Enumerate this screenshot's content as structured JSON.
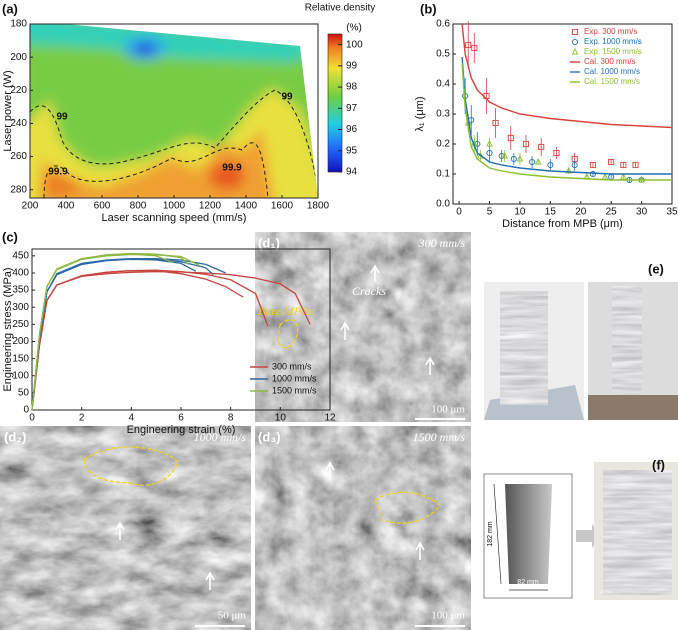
{
  "chart_data": [
    {
      "type": "contour",
      "panel": "(a)",
      "xlabel": "Laser scanning speed (mm/s)",
      "ylabel": "Laser power (W)",
      "xlim": [
        200,
        1800
      ],
      "xticks": [
        200,
        400,
        600,
        800,
        1000,
        1200,
        1400,
        1600,
        1800
      ],
      "ylim": [
        180,
        285
      ],
      "yticks": [
        180,
        200,
        220,
        240,
        260,
        280
      ],
      "yaxis_inverted": true,
      "colorbar": {
        "label": "Relative density",
        "unit": "(%)",
        "lim": [
          94,
          100.5
        ],
        "ticks": [
          94,
          95,
          96,
          97,
          98,
          99,
          100
        ]
      },
      "contour_labels": [
        "99",
        "99",
        "99.9",
        "99.9"
      ]
    },
    {
      "type": "scatter_line",
      "panel": "(b)",
      "xlabel": "Distance from MPB (μm)",
      "ylabel": "λ₁ (μm)",
      "xlim": [
        -1,
        35
      ],
      "xticks": [
        0,
        5,
        10,
        15,
        20,
        25,
        30,
        35
      ],
      "ylim": [
        0,
        0.6
      ],
      "yticks": [
        {
          "value": 0,
          "label": "0.0"
        },
        0.1,
        0.2,
        0.3,
        0.4,
        0.5,
        0.6
      ],
      "legend": "upper right",
      "series": [
        {
          "name": "Exp. 300 mm/s",
          "color": "#d9403a",
          "marker": "square",
          "x": [
            1.5,
            2.5,
            4.5,
            6,
            8.5,
            11,
            13.5,
            16,
            19,
            22,
            25,
            27,
            29
          ],
          "values": [
            0.53,
            0.52,
            0.36,
            0.27,
            0.22,
            0.2,
            0.19,
            0.17,
            0.15,
            0.13,
            0.14,
            0.13,
            0.13
          ],
          "errors": [
            0.08,
            0.05,
            0.06,
            0.05,
            0.04,
            0.03,
            0.03,
            0.02,
            0.02,
            0.01,
            0.01,
            0.01,
            0.01
          ]
        },
        {
          "name": "Exp. 1000 mm/s",
          "color": "#1f6fb4",
          "marker": "circle",
          "x": [
            1,
            2,
            3,
            5,
            7,
            9,
            12,
            15,
            19,
            22,
            25,
            28,
            30
          ],
          "values": [
            0.36,
            0.28,
            0.2,
            0.17,
            0.16,
            0.15,
            0.14,
            0.13,
            0.13,
            0.1,
            0.09,
            0.08,
            0.08
          ],
          "errors": [
            0.06,
            0.05,
            0.04,
            0.03,
            0.02,
            0.02,
            0.02,
            0.02,
            0.02,
            0.01,
            0.01,
            0.01,
            0.01
          ]
        },
        {
          "name": "Exp. 1500 mm/s",
          "color": "#8cbf2f",
          "marker": "triangle",
          "x": [
            1.5,
            2.5,
            3.5,
            5,
            7.5,
            10,
            13,
            18,
            21,
            24,
            27,
            30
          ],
          "values": [
            0.27,
            0.2,
            0.16,
            0.2,
            0.16,
            0.15,
            0.14,
            0.11,
            0.09,
            0.09,
            0.09,
            0.08
          ],
          "errors": [
            0.03,
            0.03,
            0.02,
            0.02,
            0.02,
            0.02,
            0.01,
            0.01,
            0.01,
            0.01,
            0.01,
            0.01
          ]
        },
        {
          "name": "Cal. 300 mm/s",
          "color": "#d9403a",
          "marker": "line",
          "x": [
            0.5,
            1,
            2,
            3,
            5,
            7,
            10,
            15,
            20,
            25,
            30,
            35
          ],
          "values": [
            0.6,
            0.5,
            0.42,
            0.38,
            0.34,
            0.32,
            0.3,
            0.285,
            0.275,
            0.265,
            0.26,
            0.255
          ]
        },
        {
          "name": "Cal. 1000 mm/s",
          "color": "#1f6fb4",
          "marker": "line",
          "x": [
            0.5,
            1,
            2,
            3,
            5,
            7,
            10,
            15,
            20,
            25,
            30,
            35
          ],
          "values": [
            0.49,
            0.35,
            0.22,
            0.17,
            0.14,
            0.13,
            0.12,
            0.11,
            0.105,
            0.1,
            0.1,
            0.1
          ]
        },
        {
          "name": "Cal. 1500 mm/s",
          "color": "#8cbf2f",
          "marker": "line",
          "x": [
            0.5,
            1,
            2,
            3,
            5,
            7,
            10,
            15,
            20,
            25,
            30,
            35
          ],
          "values": [
            0.47,
            0.32,
            0.19,
            0.15,
            0.12,
            0.11,
            0.1,
            0.09,
            0.085,
            0.08,
            0.08,
            0.08
          ]
        }
      ]
    },
    {
      "type": "curves",
      "panel": "(c)",
      "xlabel": "Engineering strain (%)",
      "ylabel": "Engineering stress (MPa)",
      "xlim": [
        0,
        12
      ],
      "xticks": [
        0,
        2,
        4,
        6,
        8,
        10,
        12
      ],
      "ylim": [
        0,
        470
      ],
      "yticks": [
        0,
        50,
        100,
        150,
        200,
        250,
        300,
        350,
        400,
        450
      ],
      "legend": "lower right",
      "series": [
        {
          "name": "300 mm/s",
          "color": "#c8453f",
          "curves": [
            {
              "x": [
                0,
                0.3,
                0.6,
                1,
                2,
                3,
                4,
                5,
                6,
                7,
                7.8,
                8.5
              ],
              "y": [
                0,
                190,
                320,
                365,
                392,
                402,
                407,
                406,
                398,
                382,
                360,
                330
              ]
            },
            {
              "x": [
                0,
                0.3,
                0.6,
                1,
                2,
                3,
                4,
                5,
                6,
                7,
                8,
                9,
                9.5
              ],
              "y": [
                0,
                190,
                320,
                365,
                392,
                402,
                407,
                408,
                404,
                396,
                380,
                340,
                245
              ]
            },
            {
              "x": [
                0,
                0.3,
                0.6,
                1,
                2,
                3,
                4,
                5,
                6,
                7,
                8,
                9,
                10,
                10.6,
                11.2
              ],
              "y": [
                0,
                190,
                320,
                365,
                390,
                398,
                402,
                404,
                403,
                400,
                395,
                385,
                368,
                340,
                250
              ]
            }
          ]
        },
        {
          "name": "1000 mm/s",
          "color": "#2d6aa3",
          "curves": [
            {
              "x": [
                0,
                0.3,
                0.6,
                1,
                2,
                3,
                4,
                5,
                6,
                6.6
              ],
              "y": [
                0,
                210,
                345,
                395,
                425,
                436,
                440,
                438,
                428,
                405
              ]
            },
            {
              "x": [
                0,
                0.3,
                0.6,
                1,
                2,
                3,
                4,
                5,
                6,
                7,
                7.3
              ],
              "y": [
                0,
                210,
                345,
                395,
                425,
                436,
                441,
                440,
                433,
                415,
                395
              ]
            },
            {
              "x": [
                0,
                0.3,
                0.6,
                1,
                2,
                3,
                4,
                5,
                6,
                7,
                7.8
              ],
              "y": [
                0,
                210,
                345,
                398,
                428,
                438,
                442,
                442,
                438,
                425,
                400
              ]
            }
          ]
        },
        {
          "name": "1500 mm/s",
          "color": "#8fb944",
          "curves": [
            {
              "x": [
                0,
                0.3,
                0.6,
                1,
                2,
                3,
                4,
                5,
                5.7
              ],
              "y": [
                0,
                220,
                360,
                410,
                440,
                452,
                455,
                450,
                430
              ]
            },
            {
              "x": [
                0,
                0.3,
                0.6,
                1,
                2,
                3,
                4,
                5,
                6,
                6.3
              ],
              "y": [
                0,
                220,
                360,
                412,
                442,
                453,
                457,
                455,
                445,
                425
              ]
            },
            {
              "x": [
                0,
                0.3,
                0.6,
                1,
                2,
                3,
                4,
                5,
                6,
                6.8
              ],
              "y": [
                0,
                220,
                360,
                410,
                440,
                450,
                454,
                453,
                448,
                420
              ]
            }
          ]
        }
      ]
    }
  ],
  "figure": {
    "d1": {
      "label": "(d₁)",
      "speed": "300 mm/s",
      "annotations": [
        "Bare MPBs",
        "Cracks"
      ],
      "scale": "100 μm"
    },
    "d2": {
      "label": "(d₂)",
      "speed": "1000 mm/s",
      "scale": "50 μm"
    },
    "d3": {
      "label": "(d₃)",
      "speed": "1500 mm/s",
      "scale": "100 μm"
    },
    "e": {
      "label": "(e)"
    },
    "f": {
      "label": "(f)",
      "height": "182 mm",
      "width": "82 mm",
      "scale": "10 mm"
    }
  }
}
